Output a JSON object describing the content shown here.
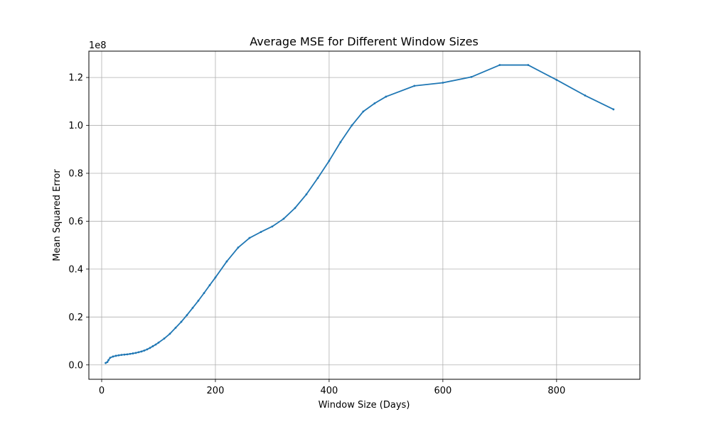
{
  "chart_data": {
    "type": "line",
    "title": "Average MSE for Different Window Sizes",
    "xlabel": "Window Size (Days)",
    "ylabel": "Mean Squared Error",
    "y_offset_label": "1e8",
    "y_scale": 100000000,
    "xlim": [
      -22.5,
      946.5
    ],
    "ylim": [
      -0.06,
      1.31
    ],
    "x_ticks": [
      0,
      200,
      400,
      600,
      800
    ],
    "y_ticks": [
      0.0,
      0.2,
      0.4,
      0.6,
      0.8,
      1.0,
      1.2
    ],
    "x_tick_labels": [
      "0",
      "200",
      "400",
      "600",
      "800"
    ],
    "y_tick_labels": [
      "0.0",
      "0.2",
      "0.4",
      "0.6",
      "0.8",
      "1.0",
      "1.2"
    ],
    "grid": true,
    "line_color": "#1f77b4",
    "series": [
      {
        "x": [
          7,
          10,
          12,
          15,
          20,
          25,
          30,
          35,
          40,
          45,
          50,
          55,
          60,
          65,
          70,
          75,
          80,
          85,
          90,
          95,
          100,
          110,
          120,
          130,
          140,
          150,
          160,
          170,
          180,
          190,
          200,
          220,
          240,
          260,
          280,
          300,
          320,
          340,
          360,
          380,
          400,
          420,
          440,
          460,
          480,
          500,
          550,
          600,
          650,
          700,
          750,
          800,
          850,
          900
        ],
        "y": [
          0.008,
          0.012,
          0.02,
          0.03,
          0.035,
          0.038,
          0.04,
          0.042,
          0.043,
          0.044,
          0.046,
          0.048,
          0.05,
          0.053,
          0.056,
          0.06,
          0.065,
          0.071,
          0.078,
          0.085,
          0.093,
          0.11,
          0.13,
          0.155,
          0.18,
          0.208,
          0.238,
          0.268,
          0.3,
          0.333,
          0.365,
          0.432,
          0.49,
          0.53,
          0.555,
          0.578,
          0.61,
          0.655,
          0.712,
          0.78,
          0.852,
          0.93,
          1.0,
          1.058,
          1.092,
          1.12,
          1.165,
          1.178,
          1.202,
          1.252,
          1.252,
          1.19,
          1.125,
          1.067
        ]
      }
    ]
  }
}
